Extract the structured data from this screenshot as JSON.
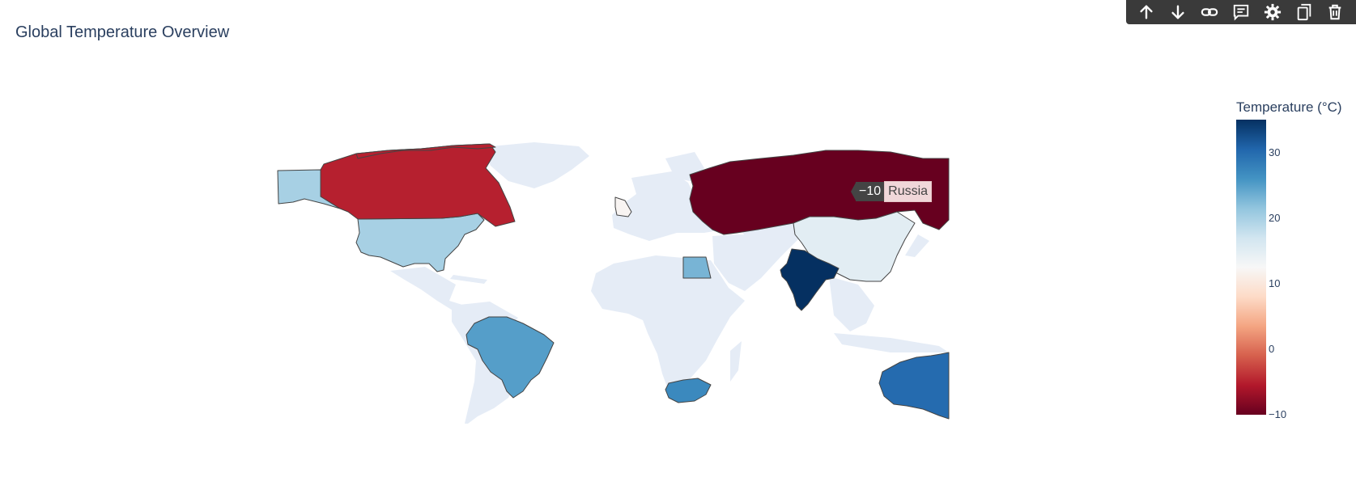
{
  "title": "Global Temperature Overview",
  "toolbar": {
    "buttons": [
      {
        "name": "arrow-up-icon"
      },
      {
        "name": "arrow-down-icon"
      },
      {
        "name": "link-icon"
      },
      {
        "name": "comment-icon"
      },
      {
        "name": "gear-icon"
      },
      {
        "name": "copy-icon"
      },
      {
        "name": "trash-icon"
      }
    ]
  },
  "colorbar": {
    "title": "Temperature (°C)",
    "ticks": [
      "30",
      "20",
      "10",
      "0",
      "−10"
    ],
    "range": [
      -10,
      35
    ],
    "colors": [
      "#67001f",
      "#b2182b",
      "#d6604d",
      "#f4a582",
      "#fddbc7",
      "#f7f7f7",
      "#d1e5f0",
      "#92c5de",
      "#4393c3",
      "#2166ac",
      "#053061"
    ]
  },
  "hover": {
    "value": "−10",
    "country": "Russia"
  },
  "chart_data": {
    "type": "choropleth",
    "title": "Global Temperature Overview",
    "colorbar_title": "Temperature (°C)",
    "zrange": [
      -10,
      35
    ],
    "colorscale": "RdBu",
    "data": [
      {
        "country": "Russia",
        "value": -10
      },
      {
        "country": "Canada",
        "value": -5
      },
      {
        "country": "United Kingdom",
        "value": 12
      },
      {
        "country": "China",
        "value": 15
      },
      {
        "country": "United States",
        "value": 20
      },
      {
        "country": "Egypt",
        "value": 23
      },
      {
        "country": "Brazil",
        "value": 25
      },
      {
        "country": "South Africa",
        "value": 27
      },
      {
        "country": "Australia",
        "value": 30
      },
      {
        "country": "India",
        "value": 35
      }
    ]
  }
}
